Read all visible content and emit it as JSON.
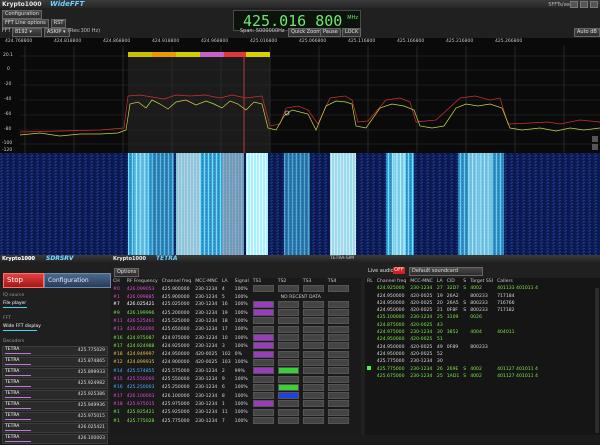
{
  "wide_fft": {
    "app_name": "Krypto1000",
    "module_name": "WideFFT",
    "fps": "5FFTs/sec",
    "buttons": {
      "configuration": "Configuration",
      "fft_line_options": "FFT Line options",
      "rst": "RST"
    },
    "fft_label": "FFT",
    "fft_size": "8192",
    "mode": "ASKIP",
    "resolution": "(Res:300 Hz)",
    "frequency": "425.016 800",
    "frequency_unit": "MHz",
    "span": "Span: 5000000Hz",
    "quick_zoom": "Quick Zoom",
    "pause": "Pause",
    "lock": "LOCK",
    "auto_db": "Auto dB",
    "freq_ticks": [
      "424.768800",
      "424.818800",
      "424.868800",
      "424.918800",
      "424.968800",
      "425.016800",
      "425.066800",
      "425.116800",
      "425.166800",
      "425.216800",
      "425.266800"
    ],
    "db_ticks": [
      "20.1",
      "0",
      "-20",
      "-40",
      "-60",
      "-80",
      "-100",
      "-120"
    ]
  },
  "sdrsrv": {
    "app_name": "Krypto1000",
    "module_name": "SDRSRV",
    "stop": "Stop",
    "configuration": "Configuration",
    "iq_source_label": "IQ source",
    "iq_source": "File player",
    "fft_label": "FFT",
    "fft_item": "Wide FFT display",
    "decoders_label": "Decoders",
    "decoders": [
      {
        "name": "TETRA",
        "freq": "425.775029"
      },
      {
        "name": "TETRA",
        "freq": "425.874865"
      },
      {
        "name": "TETRA",
        "freq": "425.899933"
      },
      {
        "name": "TETRA",
        "freq": "425.924982"
      },
      {
        "name": "TETRA",
        "freq": "425.925386"
      },
      {
        "name": "TETRA",
        "freq": "425.949936"
      },
      {
        "name": "TETRA",
        "freq": "425.975015"
      },
      {
        "name": "TETRA",
        "freq": "426.025421"
      },
      {
        "name": "TETRA",
        "freq": "426.100003"
      }
    ]
  },
  "tetra": {
    "app_name": "Krypto1000",
    "module_name": "TETRA",
    "window_title": "TETRA-SIM",
    "options": "Options",
    "live_audio": "Live audio",
    "off": "OFF",
    "default_soundcard": "Default soundcard",
    "no_recent_data": "NO RECENT DATA",
    "left_headers": [
      "CH",
      "RF Frequency",
      "Channel freq",
      "MCC-MNC",
      "LA",
      "Signal",
      "TS1",
      "TS2",
      "TS3",
      "TS4"
    ],
    "left_rows": [
      [
        "#0",
        "426.099053",
        "425.900000",
        "230-1234",
        "4",
        "100%"
      ],
      [
        "#1",
        "426.099885",
        "425.900000",
        "230-1234",
        "5",
        "100%"
      ],
      [
        "#7",
        "426.025421",
        "425.025000",
        "230-1234",
        "16",
        "100%"
      ],
      [
        "#9",
        "426.199996",
        "425.200000",
        "230-1234",
        "19",
        "100%"
      ],
      [
        "#11",
        "426.525461",
        "425.525000",
        "230-1234",
        "18",
        "100%"
      ],
      [
        "#13",
        "426.650000",
        "425.650000",
        "230-1234",
        "17",
        "100%"
      ],
      [
        "#16",
        "424.975087",
        "424.975000",
        "230-1234",
        "10",
        "100%"
      ],
      [
        "#17",
        "424.924988",
        "424.925000",
        "230-1234",
        "3",
        "100%"
      ],
      [
        "#18",
        "424.949997",
        "424.950000",
        "420-0025",
        "102",
        "0%"
      ],
      [
        "#12",
        "424.899935",
        "424.900000",
        "420-0025",
        "103",
        "100%"
      ],
      [
        "#14",
        "425.574855",
        "425.575000",
        "230-1234",
        "2",
        "99%"
      ],
      [
        "#15",
        "425.550000",
        "425.550000",
        "230-1234",
        "9",
        "100%"
      ],
      [
        "#16",
        "425.250003",
        "425.250000",
        "230-1234",
        "6",
        "100%"
      ],
      [
        "#17",
        "426.100003",
        "426.100000",
        "230-1234",
        "8",
        "100%"
      ],
      [
        "#18",
        "425.975015",
        "425.975000",
        "230-1234",
        "1",
        "100%"
      ],
      [
        "#1",
        "425.925421",
        "425.925000",
        "230-1234",
        "11",
        "100%"
      ],
      [
        "#1",
        "425.775028",
        "425.775000",
        "230-1234",
        "7",
        "100%"
      ]
    ],
    "right_headers": [
      "RL",
      "Channel freq",
      "MCC-MNC",
      "LA",
      "CID",
      "S",
      "Target SSI",
      "Callers"
    ],
    "right_rows": [
      [
        "424.925000",
        "230-1234",
        "27",
        "32D7",
        "S",
        "4002",
        "401133 401011 4"
      ],
      [
        "424.950000",
        "420-0025",
        "19",
        "26A2",
        "",
        "800233",
        "717184"
      ],
      [
        "424.950000",
        "420-0025",
        "20",
        "26A5",
        "S",
        "800233",
        "716766"
      ],
      [
        "424.950000",
        "420-0025",
        "21",
        "0F8F",
        "S",
        "800233",
        "717182"
      ],
      [
        "425.100000",
        "230-1234",
        "25",
        "3109",
        "",
        "0026",
        ""
      ],
      [
        "424.875000",
        "420-0025",
        "43",
        "",
        "",
        "",
        ""
      ],
      [
        "424.975000",
        "230-1234",
        "30",
        "3852",
        "",
        "4004",
        "404011"
      ],
      [
        "424.950000",
        "420-0025",
        "51",
        "",
        "",
        "",
        ""
      ],
      [
        "424.950000",
        "420-0025",
        "49",
        "0F89",
        "",
        "800233",
        ""
      ],
      [
        "424.950000",
        "420-0025",
        "52",
        "",
        "",
        "",
        ""
      ],
      [
        "425.775000",
        "230-1234",
        "30",
        "",
        "",
        "",
        ""
      ],
      [
        "425.775000",
        "230-1234",
        "26",
        "269E",
        "S",
        "4002",
        "401127 401011 4"
      ],
      [
        "425.675000",
        "230-1234",
        "25",
        "1AD1",
        "S",
        "4002",
        "401127 401011 4"
      ]
    ]
  }
}
